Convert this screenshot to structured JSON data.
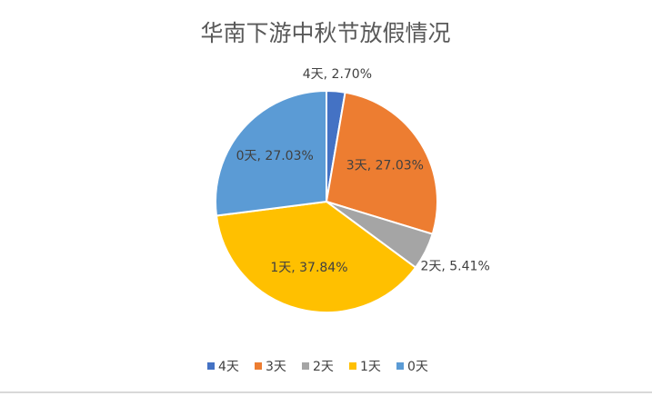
{
  "chart_data": {
    "type": "pie",
    "title": "华南下游中秋节放假情况",
    "categories": [
      "4天",
      "3天",
      "2天",
      "1天",
      "0天"
    ],
    "values": [
      2.7,
      27.03,
      5.41,
      37.84,
      27.03
    ],
    "value_labels": [
      "4天, 2.70%",
      "3天, 27.03%",
      "2天, 5.41%",
      "1天, 37.84%",
      "0天, 27.03%"
    ],
    "colors": [
      "#4472c4",
      "#ed7d31",
      "#a5a5a5",
      "#ffc000",
      "#5b9bd5"
    ],
    "legend": "bottom"
  }
}
